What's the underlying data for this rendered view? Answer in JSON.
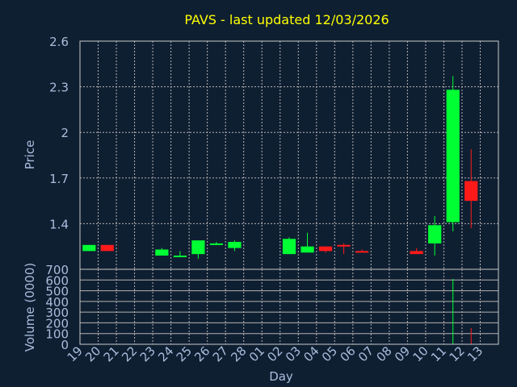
{
  "chart_data": [
    {
      "type": "candlestick",
      "title": "PAVS - last updated 12/03/2026",
      "ylabel": "Price",
      "ylim": [
        1.1,
        2.6
      ],
      "y_ticks": [
        1.4,
        1.7,
        2,
        2.3,
        2.6
      ],
      "y_tick_labels": [
        "1.4",
        "1.7",
        "2",
        "2.3",
        "2.6"
      ],
      "grid": true,
      "candles": [
        {
          "day": "19",
          "open": 1.22,
          "close": 1.26,
          "high": 1.26,
          "low": 1.22
        },
        {
          "day": "20",
          "open": 1.26,
          "close": 1.22,
          "high": 1.26,
          "low": 1.22
        },
        {
          "day": "23",
          "open": 1.19,
          "close": 1.23,
          "high": 1.24,
          "low": 1.19
        },
        {
          "day": "24",
          "open": 1.18,
          "close": 1.19,
          "high": 1.22,
          "low": 1.18
        },
        {
          "day": "25",
          "open": 1.2,
          "close": 1.29,
          "high": 1.29,
          "low": 1.17
        },
        {
          "day": "26",
          "open": 1.26,
          "close": 1.27,
          "high": 1.28,
          "low": 1.26
        },
        {
          "day": "27",
          "open": 1.24,
          "close": 1.28,
          "high": 1.29,
          "low": 1.22
        },
        {
          "day": "02",
          "open": 1.2,
          "close": 1.3,
          "high": 1.31,
          "low": 1.2
        },
        {
          "day": "03",
          "open": 1.21,
          "close": 1.25,
          "high": 1.34,
          "low": 1.21
        },
        {
          "day": "04",
          "open": 1.25,
          "close": 1.22,
          "high": 1.25,
          "low": 1.21
        },
        {
          "day": "05",
          "open": 1.26,
          "close": 1.25,
          "high": 1.27,
          "low": 1.2
        },
        {
          "day": "06",
          "open": 1.22,
          "close": 1.21,
          "high": 1.23,
          "low": 1.21
        },
        {
          "day": "09",
          "open": 1.22,
          "close": 1.2,
          "high": 1.24,
          "low": 1.2
        },
        {
          "day": "10",
          "open": 1.27,
          "close": 1.39,
          "high": 1.45,
          "low": 1.19
        },
        {
          "day": "11",
          "open": 1.41,
          "close": 2.28,
          "high": 2.37,
          "low": 1.35
        },
        {
          "day": "12",
          "open": 1.68,
          "close": 1.55,
          "high": 1.89,
          "low": 1.37
        }
      ]
    },
    {
      "type": "bar",
      "xlabel": "Day",
      "ylabel": "Volume (0000)",
      "ylim": [
        0,
        700
      ],
      "y_ticks": [
        0,
        100,
        200,
        300,
        400,
        500,
        600,
        700
      ],
      "y_tick_labels": [
        "0",
        "100",
        "200",
        "300",
        "400",
        "500",
        "600",
        "700"
      ],
      "categories": [
        "19",
        "20",
        "21",
        "22",
        "23",
        "24",
        "25",
        "26",
        "27",
        "28",
        "01",
        "02",
        "03",
        "04",
        "05",
        "06",
        "07",
        "08",
        "09",
        "10",
        "11",
        "12",
        "13"
      ],
      "volumes": [
        {
          "day": "11",
          "value": 610,
          "direction": "up"
        },
        {
          "day": "12",
          "value": 150,
          "direction": "down"
        }
      ]
    }
  ],
  "colors": {
    "background": "#0f1f32",
    "up": "#00ff33",
    "down": "#ff1a1a",
    "title": "#ffff00",
    "axis_text": "#a8bedc",
    "grid": "#b4b4b4",
    "frame": "#c8c8c8"
  }
}
